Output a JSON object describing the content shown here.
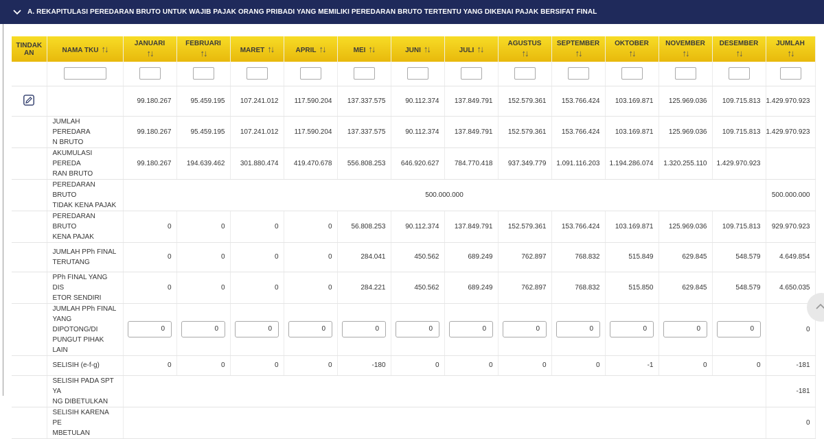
{
  "header": {
    "title": "A. REKAPITULASI PEREDARAN BRUTO UNTUK WAJIB PAJAK ORANG PRIBADI YANG MEMILIKI PEREDARAN BRUTO TERTENTU YANG DIKENAI PAJAK BERSIFAT FINAL",
    "chevron_icon": "chevron-down-icon"
  },
  "colors": {
    "header_bg": "#1f2a5b",
    "table_header": "#f2cd1a"
  },
  "columns": {
    "tindakan_1": "TINDAK",
    "tindakan_2": "AN",
    "nama": "NAMA TKU",
    "januari": "JANUARI",
    "februari": "FEBRUARI",
    "maret": "MARET",
    "april": "APRIL",
    "mei": "MEI",
    "juni": "JUNI",
    "juli": "JULI",
    "agustus": "AGUSTUS",
    "september": "SEPTEMBER",
    "oktober": "OKTOBER",
    "november": "NOVEMBER",
    "desember": "DESEMBER",
    "jumlah": "JUMLAH",
    "sort_glyph": "↑↓"
  },
  "rows": {
    "r0": {
      "v": [
        "99.180.267",
        "95.459.195",
        "107.241.012",
        "117.590.204",
        "137.337.575",
        "90.112.374",
        "137.849.791",
        "152.579.361",
        "153.766.424",
        "103.169.871",
        "125.969.036",
        "109.715.813",
        "1.429.970.923"
      ]
    },
    "r1": {
      "name1": "JUMLAH PEREDARA",
      "name2": "N BRUTO",
      "v": [
        "99.180.267",
        "95.459.195",
        "107.241.012",
        "117.590.204",
        "137.337.575",
        "90.112.374",
        "137.849.791",
        "152.579.361",
        "153.766.424",
        "103.169.871",
        "125.969.036",
        "109.715.813",
        "1.429.970.923"
      ]
    },
    "r2": {
      "name1": "AKUMULASI PEREDA",
      "name2": "RAN BRUTO",
      "v": [
        "99.180.267",
        "194.639.462",
        "301.880.474",
        "419.470.678",
        "556.808.253",
        "646.920.627",
        "784.770.418",
        "937.349.779",
        "1.091.116.203",
        "1.194.286.074",
        "1.320.255.110",
        "1.429.970.923",
        ""
      ]
    },
    "r3": {
      "name1": "PEREDARAN BRUTO",
      "name2": "TIDAK KENA PAJAK",
      "merged": "500.000.000",
      "total": "500.000.000"
    },
    "r4": {
      "name1": "PEREDARAN BRUTO",
      "name2": "KENA PAJAK",
      "v": [
        "0",
        "0",
        "0",
        "0",
        "56.808.253",
        "90.112.374",
        "137.849.791",
        "152.579.361",
        "153.766.424",
        "103.169.871",
        "125.969.036",
        "109.715.813",
        "929.970.923"
      ]
    },
    "r5": {
      "name1": "JUMLAH PPh FINAL",
      "name2": "TERUTANG",
      "v": [
        "0",
        "0",
        "0",
        "0",
        "284.041",
        "450.562",
        "689.249",
        "762.897",
        "768.832",
        "515.849",
        "629.845",
        "548.579",
        "4.649.854"
      ]
    },
    "r6": {
      "name1": "PPh FINAL YANG DIS",
      "name2": "ETOR SENDIRI",
      "v": [
        "0",
        "0",
        "0",
        "0",
        "284.221",
        "450.562",
        "689.249",
        "762.897",
        "768.832",
        "515.850",
        "629.845",
        "548.579",
        "4.650.035"
      ]
    },
    "r7": {
      "name1": "JUMLAH PPh FINAL",
      "name2": "YANG DIPOTONG/DI",
      "name3": "PUNGUT PIHAK LAIN",
      "v": [
        "0",
        "0",
        "0",
        "0",
        "0",
        "0",
        "0",
        "0",
        "0",
        "0",
        "0",
        "0",
        "0"
      ]
    },
    "r8": {
      "name1": "SELISIH (e-f-g)",
      "v": [
        "0",
        "0",
        "0",
        "0",
        "-180",
        "0",
        "0",
        "0",
        "0",
        "-1",
        "0",
        "0",
        "-181"
      ]
    },
    "r9": {
      "name1": "SELISIH PADA SPT YA",
      "name2": "NG DIBETULKAN",
      "total": "-181"
    },
    "r10": {
      "name1": "SELISIH KARENA PE",
      "name2": "MBETULAN",
      "total": "0"
    }
  },
  "icons": {
    "edit": "edit-icon",
    "scroll_up": "chevron-up-icon"
  }
}
